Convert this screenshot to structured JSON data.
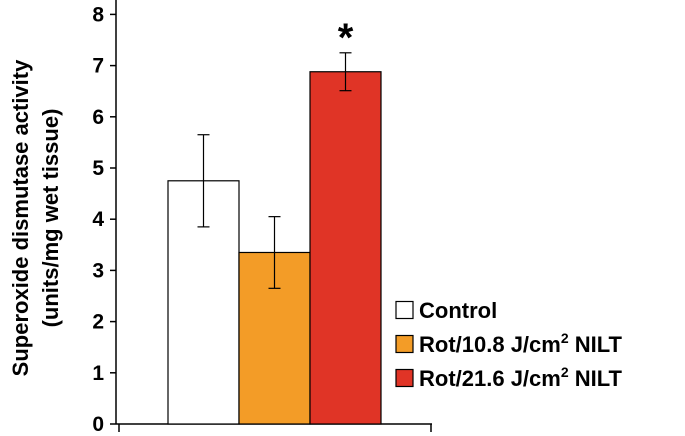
{
  "chart_data": {
    "type": "bar",
    "ylabel_line1": "Superoxide dismutase activity",
    "ylabel_line2": "(units/mg wet tissue)",
    "ylim": [
      0,
      8
    ],
    "yticks": [
      "0",
      "1",
      "2",
      "3",
      "4",
      "5",
      "6",
      "7",
      "8"
    ],
    "series": [
      {
        "name": "Control",
        "value": 4.75,
        "error": 0.9,
        "color": "#ffffff",
        "annotation": ""
      },
      {
        "name": "Rot/10.8 J/cm2 NILT",
        "value": 3.35,
        "error": 0.7,
        "color": "#f39c27",
        "annotation": ""
      },
      {
        "name": "Rot/21.6 J/cm2 NILT",
        "value": 6.88,
        "error": 0.37,
        "color": "#e03426",
        "annotation": "*"
      }
    ],
    "legend": [
      {
        "prefix": "Control",
        "unit_base": "",
        "unit_sup": "",
        "suffix": ""
      },
      {
        "prefix": "Rot/10.8  J/cm",
        "unit_base": "",
        "unit_sup": "2",
        "suffix": " NILT"
      },
      {
        "prefix": "Rot/21.6 J/cm",
        "unit_base": "",
        "unit_sup": "2",
        "suffix": " NILT"
      }
    ],
    "legend_position": "bottom-right",
    "grid": false
  }
}
